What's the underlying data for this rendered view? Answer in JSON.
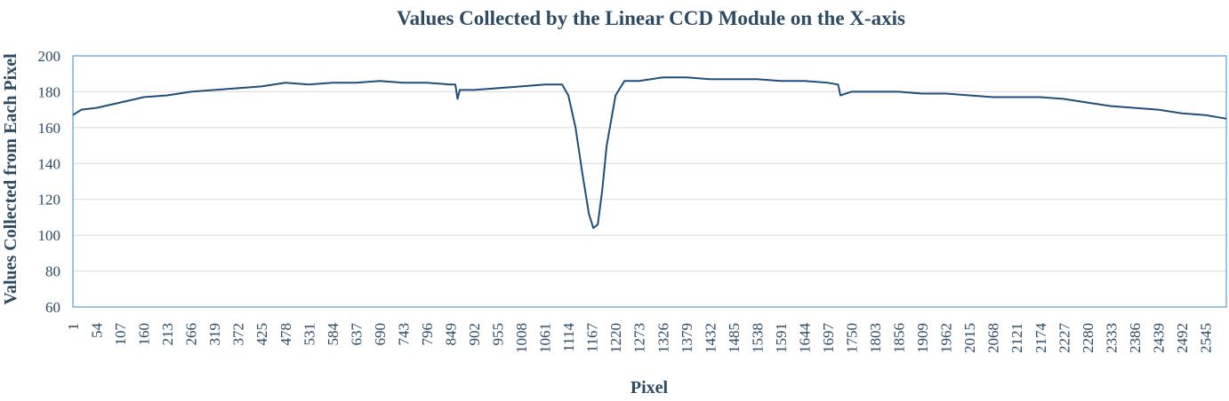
{
  "chart_data": {
    "type": "line",
    "title": "Values Collected by the Linear CCD Module on the X-axis",
    "xlabel": "Pixel",
    "ylabel": "Values Collected from Each Pixel",
    "xlim": [
      1,
      2592
    ],
    "ylim": [
      60,
      200
    ],
    "y_ticks": [
      60,
      80,
      100,
      120,
      140,
      160,
      180,
      200
    ],
    "x_tick_labels": [
      "1",
      "54",
      "107",
      "160",
      "213",
      "266",
      "319",
      "372",
      "425",
      "478",
      "531",
      "584",
      "637",
      "690",
      "743",
      "796",
      "849",
      "902",
      "955",
      "1008",
      "1061",
      "1114",
      "1167",
      "1220",
      "1273",
      "1326",
      "1379",
      "1432",
      "1485",
      "1538",
      "1591",
      "1644",
      "1697",
      "1750",
      "1803",
      "1856",
      "1909",
      "1962",
      "2015",
      "2068",
      "2121",
      "2174",
      "2227",
      "2280",
      "2333",
      "2386",
      "2439",
      "2492",
      "2545"
    ],
    "grid": "horizontal",
    "legend": "none",
    "colors": {
      "series": "#1f4e79",
      "frame": "#5b9bd5",
      "grid": "#d9d9d9",
      "text": "#2e4a63"
    },
    "series": [
      {
        "x": [
          1,
          20,
          54,
          107,
          160,
          213,
          266,
          319,
          372,
          425,
          478,
          531,
          584,
          637,
          690,
          743,
          796,
          849,
          860,
          865,
          870,
          902,
          955,
          1008,
          1061,
          1100,
          1114,
          1130,
          1145,
          1160,
          1170,
          1180,
          1190,
          1200,
          1220,
          1240,
          1273,
          1326,
          1379,
          1432,
          1485,
          1538,
          1591,
          1644,
          1697,
          1720,
          1725,
          1750,
          1803,
          1856,
          1909,
          1962,
          2015,
          2068,
          2121,
          2174,
          2227,
          2280,
          2333,
          2386,
          2439,
          2492,
          2545,
          2592
        ],
        "y": [
          167,
          170,
          171,
          174,
          177,
          178,
          180,
          181,
          182,
          183,
          185,
          184,
          185,
          185,
          186,
          185,
          185,
          184,
          184,
          176,
          181,
          181,
          182,
          183,
          184,
          184,
          178,
          160,
          135,
          112,
          104,
          106,
          125,
          150,
          178,
          186,
          186,
          188,
          188,
          187,
          187,
          187,
          186,
          186,
          185,
          184,
          178,
          180,
          180,
          180,
          179,
          179,
          178,
          177,
          177,
          177,
          176,
          174,
          172,
          171,
          170,
          168,
          167,
          165
        ]
      }
    ]
  }
}
